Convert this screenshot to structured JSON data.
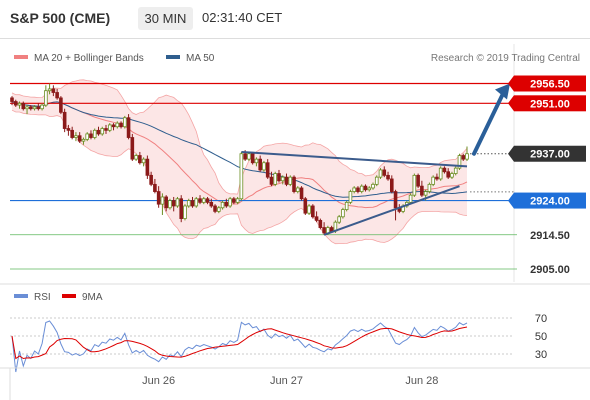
{
  "header": {
    "title": "S&P 500 (CME)",
    "interval": "30 MIN",
    "time": "02:31:40 CET"
  },
  "main_panel": {
    "legend": [
      {
        "name": "MA 20 + Bollinger Bands",
        "color": "#f08080"
      },
      {
        "name": "MA 50",
        "color": "#2f5e8e"
      }
    ],
    "credit": "Research © 2019 Trading Central",
    "price_levels": [
      {
        "label": "2956.50",
        "value": 2956.5,
        "line_color": "#dd0000",
        "tag_bg": "#dd0000",
        "tag_color": "#ffffff"
      },
      {
        "label": "2951.00",
        "value": 2951.0,
        "line_color": "#dd0000",
        "tag_bg": "#dd0000",
        "tag_color": "#ffffff"
      },
      {
        "label": "2937.00",
        "value": 2937.0,
        "line_color": "#555555",
        "tag_bg": "#333333",
        "tag_color": "#ffffff"
      },
      {
        "label": "2924.00",
        "value": 2924.0,
        "line_color": "#1e6fd9",
        "tag_bg": "#1e6fd9",
        "tag_color": "#ffffff"
      },
      {
        "label": "2914.50",
        "value": 2914.5,
        "line_color": "#5cb85c",
        "tag_bg": "none",
        "tag_color": "#333333"
      },
      {
        "label": "2905.00",
        "value": 2905.0,
        "line_color": "#5cb85c",
        "tag_bg": "none",
        "tag_color": "#333333"
      }
    ]
  },
  "rsi_panel": {
    "legend": [
      {
        "name": "RSI",
        "color": "#6a8ed6"
      },
      {
        "name": "9MA",
        "color": "#dd0000"
      }
    ],
    "ticks": [
      "70",
      "50",
      "30"
    ]
  },
  "x_axis": {
    "labels": [
      "Jun 26",
      "Jun 27",
      "Jun 28"
    ]
  },
  "chart_data": {
    "type": "candlestick",
    "instrument": "S&P 500 (CME)",
    "interval": "30 MIN",
    "x_labels": [
      "Jun 26",
      "Jun 27",
      "Jun 28"
    ],
    "candles_ohlc": [
      [
        2952.5,
        2953,
        2950.5,
        2951.5
      ],
      [
        2951.5,
        2952,
        2950,
        2950.5
      ],
      [
        2950.5,
        2951.5,
        2949.5,
        2951
      ],
      [
        2951,
        2951.5,
        2949,
        2949.5
      ],
      [
        2949.5,
        2950.5,
        2948,
        2950
      ],
      [
        2950,
        2950.5,
        2949,
        2949.5
      ],
      [
        2949.5,
        2950.5,
        2949,
        2950
      ],
      [
        2950,
        2951,
        2949,
        2949.5
      ],
      [
        2949.5,
        2951,
        2949,
        2950.5
      ],
      [
        2950.5,
        2956,
        2950,
        2954.5
      ],
      [
        2954.5,
        2956.5,
        2953.5,
        2955
      ],
      [
        2955,
        2956,
        2953,
        2954
      ],
      [
        2954,
        2955,
        2952,
        2952.5
      ],
      [
        2952.5,
        2953,
        2948,
        2948.5
      ],
      [
        2948.5,
        2949.5,
        2943,
        2944
      ],
      [
        2944,
        2945,
        2942,
        2943.5
      ],
      [
        2943.5,
        2944.5,
        2941,
        2941.5
      ],
      [
        2941.5,
        2943,
        2940.5,
        2942
      ],
      [
        2942,
        2943,
        2940,
        2940.5
      ],
      [
        2940.5,
        2941.5,
        2939.5,
        2941
      ],
      [
        2941,
        2943,
        2940.5,
        2942.5
      ],
      [
        2942.5,
        2943.5,
        2941,
        2941.5
      ],
      [
        2941.5,
        2944,
        2941,
        2943.5
      ],
      [
        2943.5,
        2944.5,
        2942,
        2942.5
      ],
      [
        2942.5,
        2944.5,
        2942,
        2944
      ],
      [
        2944,
        2945,
        2942.5,
        2943.5
      ],
      [
        2943.5,
        2945.5,
        2943,
        2945
      ],
      [
        2945,
        2945.5,
        2943.5,
        2944.5
      ],
      [
        2944.5,
        2946,
        2944,
        2945.5
      ],
      [
        2945.5,
        2946,
        2944,
        2944.5
      ],
      [
        2944.5,
        2947.5,
        2944,
        2947
      ],
      [
        2947,
        2948,
        2941,
        2941.5
      ],
      [
        2941.5,
        2942.5,
        2935,
        2935.5
      ],
      [
        2935.5,
        2937,
        2935,
        2936.5
      ],
      [
        2936.5,
        2937.5,
        2934,
        2934.5
      ],
      [
        2934.5,
        2936,
        2933.5,
        2935.5
      ],
      [
        2935.5,
        2936.5,
        2930,
        2931
      ],
      [
        2931,
        2932,
        2928,
        2928.5
      ],
      [
        2928.5,
        2930,
        2926,
        2926.5
      ],
      [
        2926.5,
        2928,
        2922,
        2923
      ],
      [
        2923,
        2926,
        2920,
        2925
      ],
      [
        2925,
        2925.5,
        2921,
        2922
      ],
      [
        2922,
        2924.5,
        2921.5,
        2924
      ],
      [
        2924,
        2925,
        2921,
        2922.5
      ],
      [
        2922.5,
        2925,
        2922,
        2924.5
      ],
      [
        2924.5,
        2925.5,
        2918,
        2919
      ],
      [
        2919,
        2923,
        2918.5,
        2922.5
      ],
      [
        2922.5,
        2924.5,
        2922,
        2924
      ],
      [
        2924,
        2925,
        2922,
        2922.5
      ],
      [
        2922.5,
        2925,
        2922,
        2924.5
      ],
      [
        2924.5,
        2925.5,
        2923,
        2923.5
      ],
      [
        2923.5,
        2925,
        2923,
        2924.5
      ],
      [
        2924.5,
        2925,
        2923,
        2923.5
      ],
      [
        2923.5,
        2924.5,
        2922,
        2922.5
      ],
      [
        2922.5,
        2923,
        2920.5,
        2921
      ],
      [
        2921,
        2922.5,
        2920.5,
        2922
      ],
      [
        2922,
        2924,
        2921.5,
        2923.5
      ],
      [
        2923.5,
        2924.5,
        2922,
        2922.5
      ],
      [
        2922.5,
        2925,
        2922,
        2924.5
      ],
      [
        2924.5,
        2925,
        2923,
        2923.5
      ],
      [
        2923.5,
        2925,
        2923,
        2924.5
      ],
      [
        2924.5,
        2937.5,
        2924,
        2937
      ],
      [
        2937,
        2938,
        2935,
        2935.5
      ],
      [
        2935.5,
        2937.5,
        2935,
        2937
      ],
      [
        2937,
        2937.5,
        2934,
        2934.5
      ],
      [
        2934.5,
        2936,
        2933.5,
        2935.5
      ],
      [
        2935.5,
        2936.5,
        2932,
        2932.5
      ],
      [
        2932.5,
        2935,
        2932,
        2934.5
      ],
      [
        2934.5,
        2935.5,
        2930,
        2930.5
      ],
      [
        2930.5,
        2932,
        2928,
        2928.5
      ],
      [
        2928.5,
        2932,
        2928,
        2931.5
      ],
      [
        2931.5,
        2932.5,
        2929,
        2929.5
      ],
      [
        2929.5,
        2931,
        2928.5,
        2930.5
      ],
      [
        2930.5,
        2931.5,
        2928,
        2928.5
      ],
      [
        2928.5,
        2931,
        2928,
        2930.5
      ],
      [
        2930.5,
        2931,
        2926,
        2926.5
      ],
      [
        2926.5,
        2928,
        2926,
        2927.5
      ],
      [
        2927.5,
        2928,
        2924,
        2924.5
      ],
      [
        2924.5,
        2925,
        2920,
        2920.5
      ],
      [
        2920.5,
        2923,
        2920,
        2922.5
      ],
      [
        2922.5,
        2923,
        2919,
        2919.5
      ],
      [
        2919.5,
        2921,
        2918,
        2918.5
      ],
      [
        2918.5,
        2919,
        2916,
        2916.5
      ],
      [
        2916.5,
        2918,
        2914.5,
        2915
      ],
      [
        2915,
        2917,
        2914.5,
        2916.5
      ],
      [
        2916.5,
        2917,
        2915,
        2915.5
      ],
      [
        2915.5,
        2918.5,
        2915,
        2918
      ],
      [
        2918,
        2920,
        2917.5,
        2919.5
      ],
      [
        2919.5,
        2922,
        2919,
        2921.5
      ],
      [
        2921.5,
        2924,
        2921,
        2923.5
      ],
      [
        2923.5,
        2927,
        2923,
        2926.5
      ],
      [
        2926.5,
        2928,
        2926,
        2927.5
      ],
      [
        2927.5,
        2928,
        2926,
        2926.5
      ],
      [
        2926.5,
        2928.5,
        2926,
        2928
      ],
      [
        2928,
        2928.5,
        2926.5,
        2927
      ],
      [
        2927,
        2928,
        2926.5,
        2927.5
      ],
      [
        2927.5,
        2929,
        2927,
        2928.5
      ],
      [
        2928.5,
        2931,
        2928,
        2930.5
      ],
      [
        2930.5,
        2933,
        2930,
        2932.5
      ],
      [
        2932.5,
        2933.5,
        2930.5,
        2931
      ],
      [
        2931,
        2932,
        2929.5,
        2930
      ],
      [
        2930,
        2931,
        2926,
        2926.5
      ],
      [
        2926.5,
        2927,
        2918.5,
        2922
      ],
      [
        2922,
        2923,
        2920.5,
        2921
      ],
      [
        2921,
        2923,
        2920.5,
        2922.5
      ],
      [
        2922.5,
        2924,
        2922,
        2923.5
      ],
      [
        2923.5,
        2926,
        2923,
        2925.5
      ],
      [
        2925.5,
        2931.5,
        2925,
        2931
      ],
      [
        2931,
        2931.5,
        2927.5,
        2928
      ],
      [
        2928,
        2929.5,
        2925,
        2925.5
      ],
      [
        2925.5,
        2927,
        2924,
        2926.5
      ],
      [
        2926.5,
        2929,
        2926,
        2928.5
      ],
      [
        2928.5,
        2931,
        2928,
        2930.5
      ],
      [
        2930.5,
        2931.5,
        2929.5,
        2930
      ],
      [
        2930,
        2933.5,
        2929.5,
        2933
      ],
      [
        2933,
        2933.5,
        2931.5,
        2932
      ],
      [
        2932,
        2933,
        2930,
        2930.5
      ],
      [
        2930.5,
        2932,
        2930,
        2931.5
      ],
      [
        2931.5,
        2933.5,
        2931,
        2933
      ],
      [
        2933,
        2937,
        2932.5,
        2936.5
      ],
      [
        2936.5,
        2937,
        2935,
        2935.5
      ],
      [
        2935.5,
        2939,
        2935,
        2937
      ]
    ],
    "projection": {
      "from": 2937.0,
      "to": 2956.5,
      "color": "#2a5f99"
    },
    "rsi_range": [
      10,
      90
    ]
  }
}
